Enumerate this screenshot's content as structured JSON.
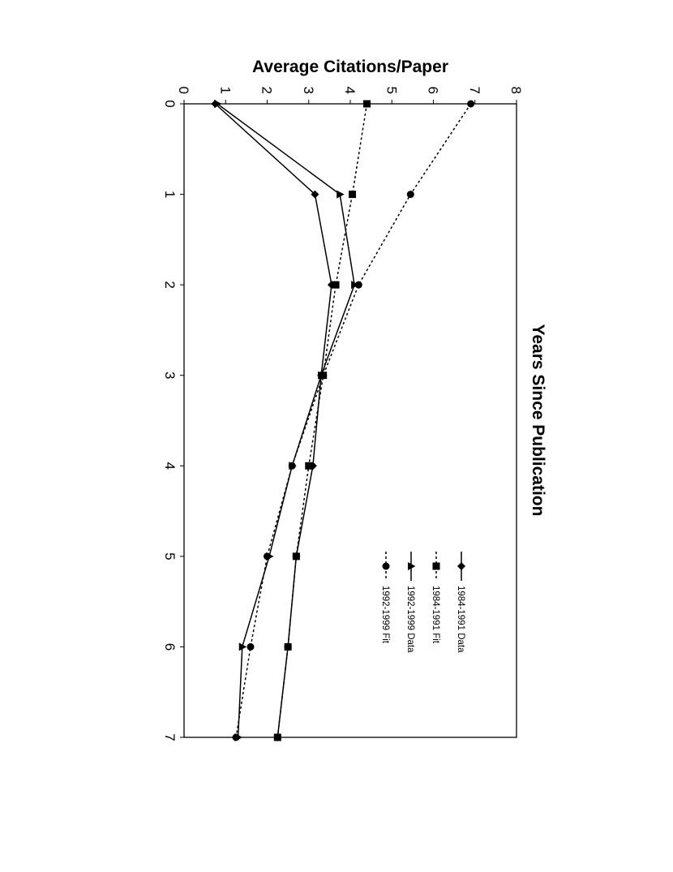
{
  "chart_data": {
    "type": "line",
    "orientation": "rotated-90-clockwise",
    "title": "",
    "xlabel": "Years Since Publication",
    "ylabel": "Average Citations/Paper",
    "x": [
      0,
      1,
      2,
      3,
      4,
      5,
      6,
      7
    ],
    "xlim": [
      0,
      7
    ],
    "ylim": [
      0,
      8
    ],
    "x_ticks": [
      0,
      1,
      2,
      3,
      4,
      5,
      6,
      7
    ],
    "y_ticks": [
      0,
      1,
      2,
      3,
      4,
      5,
      6,
      7,
      8
    ],
    "grid": false,
    "legend_position": "upper-right inside plot",
    "series": [
      {
        "name": "1984-1991 Data",
        "style": "solid",
        "marker": "diamond",
        "values": [
          0.75,
          3.15,
          3.55,
          3.3,
          3.1,
          2.7,
          2.5,
          2.25
        ]
      },
      {
        "name": "1984-1991 Fit",
        "style": "dotted",
        "marker": "square",
        "values": [
          4.4,
          4.05,
          3.65,
          3.35,
          3.0,
          2.7,
          2.5,
          2.25
        ]
      },
      {
        "name": "1992-1999 Data",
        "style": "solid",
        "marker": "triangle",
        "values": [
          0.8,
          3.75,
          4.1,
          3.3,
          2.6,
          2.05,
          1.4,
          1.3
        ]
      },
      {
        "name": "1992-1999 Fit",
        "style": "dotted",
        "marker": "circle",
        "values": [
          6.9,
          5.45,
          4.2,
          3.35,
          2.6,
          2.0,
          1.6,
          1.25
        ]
      }
    ]
  }
}
